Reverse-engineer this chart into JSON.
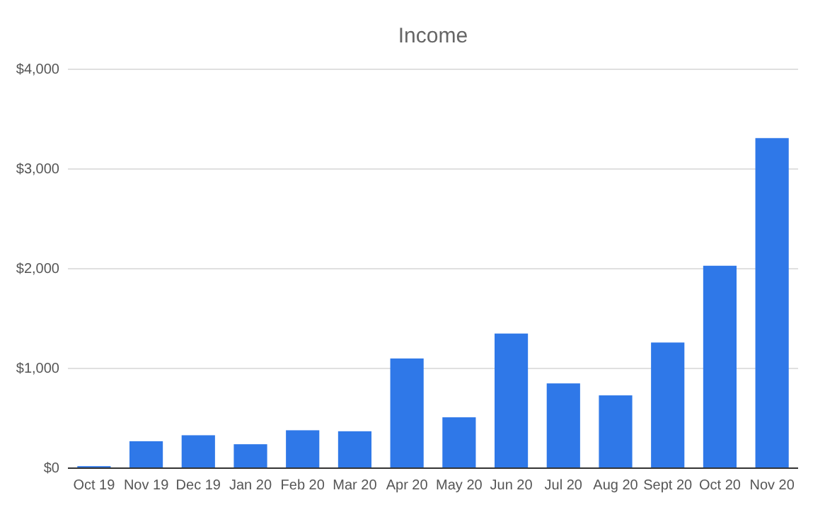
{
  "chart_data": {
    "type": "bar",
    "title": "Income",
    "categories": [
      "Oct 19",
      "Nov 19",
      "Dec 19",
      "Jan 20",
      "Feb 20",
      "Mar 20",
      "Apr 20",
      "May 20",
      "Jun 20",
      "Jul 20",
      "Aug 20",
      "Sept 20",
      "Oct 20",
      "Nov 20"
    ],
    "values": [
      20,
      270,
      330,
      240,
      380,
      370,
      1100,
      510,
      1350,
      850,
      730,
      1260,
      2030,
      3310
    ],
    "color": "#2f78e8",
    "ylim": [
      0,
      4000
    ],
    "yticks": [
      {
        "value": 0,
        "label": "$0"
      },
      {
        "value": 1000,
        "label": "$1,000"
      },
      {
        "value": 2000,
        "label": "$2,000"
      },
      {
        "value": 3000,
        "label": "$3,000"
      },
      {
        "value": 4000,
        "label": "$4,000"
      }
    ],
    "grid": "y"
  }
}
